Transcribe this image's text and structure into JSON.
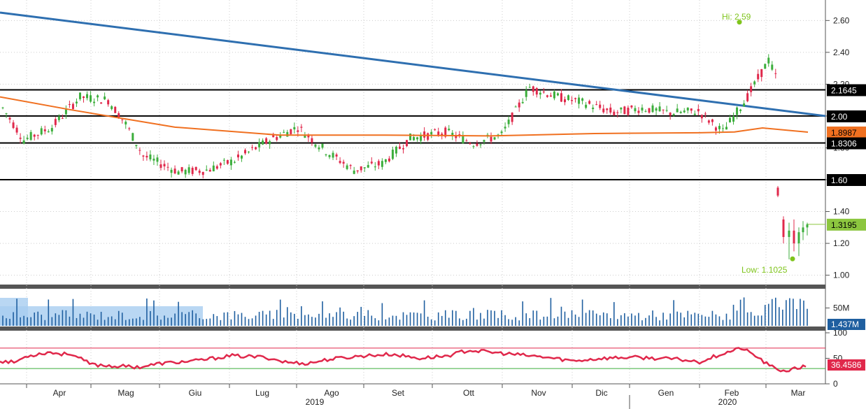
{
  "chart_data": {
    "type": "candlestick",
    "x_labels": {
      "months": [
        "Apr",
        "Mag",
        "Giu",
        "Lug",
        "Ago",
        "Set",
        "Ott",
        "Nov",
        "Dic",
        "Gen",
        "Feb",
        "Mar"
      ],
      "years": [
        "2019",
        "2020"
      ]
    },
    "price_panel": {
      "y_ticks": [
        "1.00",
        "1.20",
        "1.40",
        "1.60",
        "1.80",
        "2.00",
        "2.20",
        "2.40",
        "2.60"
      ],
      "ylim": [
        0.95,
        2.72
      ],
      "grid": true,
      "series_colors": {
        "up": "#3cae3c",
        "down": "#e0284b"
      },
      "moving_average_color": "#f07020",
      "trendline": {
        "color": "#2e6fb0",
        "start": 2.65,
        "end": 2.0
      },
      "horizontal_levels": [
        2.1645,
        2.0,
        1.8306,
        1.6
      ],
      "badges": [
        {
          "label": "2.1645",
          "value": 2.1645,
          "bg": "#000000",
          "fg": "#ffffff"
        },
        {
          "label": "2.00",
          "value": 2.0,
          "bg": "#000000",
          "fg": "#ffffff"
        },
        {
          "label": "1.8987",
          "value": 1.8987,
          "bg": "#f07020",
          "fg": "#000000"
        },
        {
          "label": "1.8306",
          "value": 1.8306,
          "bg": "#000000",
          "fg": "#ffffff"
        },
        {
          "label": "1.60",
          "value": 1.6,
          "bg": "#000000",
          "fg": "#ffffff"
        },
        {
          "label": "1.3195",
          "value": 1.3195,
          "bg": "#8cc63f",
          "fg": "#000000"
        }
      ],
      "annotations": {
        "high": "Hi: 2.59",
        "low": "Low: 1.1025"
      },
      "high_value": 2.59,
      "low_value": 1.1025,
      "last_close": 1.3195,
      "ma_value": 1.8987
    },
    "volume_panel": {
      "y_ticks": [
        "50M"
      ],
      "ylim": [
        0,
        100
      ],
      "last_label": "1.437M",
      "last_badge_bg": "#1f5fa0",
      "bar_color": "#1f5fa0"
    },
    "rsi_panel": {
      "y_ticks": [
        "100",
        "50",
        "0"
      ],
      "ylim": [
        0,
        100
      ],
      "upper_level": 70,
      "lower_level": 30,
      "last_label": "36.4586",
      "line_color": "#e0284b",
      "upper_color": "#e0284b",
      "lower_color": "#3cae3c"
    }
  }
}
